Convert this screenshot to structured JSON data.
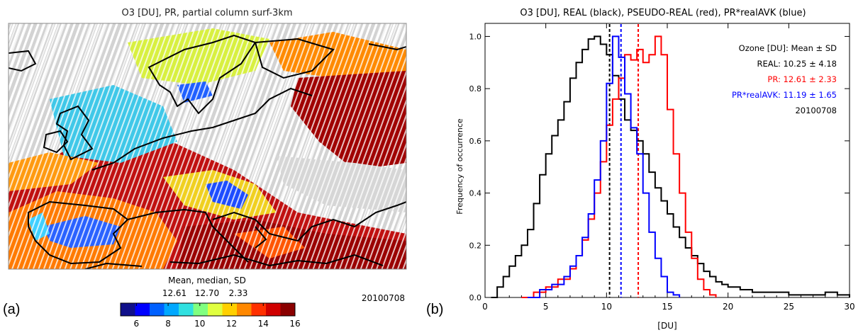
{
  "panel_a": {
    "label": "(a)",
    "title": "O3 [DU], PR, partial column surf-3km",
    "date": "20100708",
    "stats_label": "Mean, median, SD",
    "stats_values": [
      "12.61",
      "12.70",
      "2.33"
    ],
    "colorbar": {
      "min": 5,
      "max": 16,
      "ticks": [
        "6",
        "8",
        "10",
        "12",
        "14",
        "16"
      ],
      "colors": [
        "#10108a",
        "#0000ff",
        "#0060ff",
        "#00a8ff",
        "#30e0e0",
        "#80ff80",
        "#e0ff40",
        "#ffd000",
        "#ff8800",
        "#ff3000",
        "#d00000",
        "#8a0000"
      ]
    },
    "map_colors": {
      "background": "#d9d9d9",
      "coast": "#000000"
    }
  },
  "chart_data": {
    "type": "line",
    "panel_label": "(b)",
    "title": "O3 [DU], REAL (black), PSEUDO-REAL (red), PR*realAVK (blue)",
    "xlabel": "[DU]",
    "ylabel": "Frequency of occurrence",
    "xlim": [
      0,
      30
    ],
    "ylim": [
      0,
      1.05
    ],
    "xticks": [
      "0",
      "5",
      "10",
      "15",
      "20",
      "25",
      "30"
    ],
    "yticks": [
      "0.0",
      "0.2",
      "0.4",
      "0.6",
      "0.8",
      "1.0"
    ],
    "legend": {
      "header": "Ozone [DU]: Mean ± SD",
      "position": "top-right",
      "entries": [
        {
          "text": "REAL: 10.25 ± 4.18",
          "color": "#000000"
        },
        {
          "text": "PR: 12.61 ± 2.33",
          "color": "#ff0000"
        },
        {
          "text": "PR*realAVK: 11.19 ± 1.65",
          "color": "#0000ff"
        }
      ],
      "date": "20100708"
    },
    "series": [
      {
        "color": "#000000",
        "x": [
          0.5,
          1,
          1.5,
          2,
          2.5,
          3,
          3.5,
          4,
          4.5,
          5,
          5.5,
          6,
          6.5,
          7,
          7.5,
          8,
          8.5,
          9,
          9.5,
          10,
          10.5,
          11,
          11.5,
          12,
          12.5,
          13,
          13.5,
          14,
          14.5,
          15,
          15.5,
          16,
          16.5,
          17,
          17.5,
          18,
          18.5,
          19,
          19.5,
          20,
          21,
          22,
          23,
          24,
          25,
          26,
          27,
          28,
          29,
          30
        ],
        "y": [
          0.0,
          0.04,
          0.08,
          0.12,
          0.16,
          0.2,
          0.26,
          0.36,
          0.47,
          0.55,
          0.62,
          0.68,
          0.75,
          0.84,
          0.9,
          0.95,
          0.99,
          1.0,
          0.97,
          0.93,
          0.85,
          0.76,
          0.68,
          0.64,
          0.6,
          0.55,
          0.48,
          0.42,
          0.37,
          0.32,
          0.27,
          0.23,
          0.19,
          0.16,
          0.13,
          0.1,
          0.08,
          0.06,
          0.05,
          0.04,
          0.03,
          0.02,
          0.02,
          0.02,
          0.01,
          0.01,
          0.01,
          0.02,
          0.01,
          0.0
        ]
      },
      {
        "color": "#ff0000",
        "x": [
          3,
          4,
          5,
          6,
          7,
          7.5,
          8,
          8.5,
          9,
          9.5,
          10,
          10.5,
          11,
          11.5,
          12,
          12.5,
          13,
          13.5,
          14,
          14.5,
          15,
          15.5,
          16,
          16.5,
          17,
          17.5,
          18,
          18.5,
          19
        ],
        "y": [
          0.0,
          0.02,
          0.04,
          0.07,
          0.11,
          0.16,
          0.22,
          0.3,
          0.4,
          0.52,
          0.66,
          0.76,
          0.84,
          0.93,
          0.91,
          0.95,
          0.9,
          0.93,
          1.0,
          0.93,
          0.72,
          0.55,
          0.4,
          0.25,
          0.15,
          0.07,
          0.03,
          0.01,
          0.0
        ]
      },
      {
        "color": "#0000ff",
        "x": [
          3.5,
          4.5,
          5.5,
          6.5,
          7,
          7.5,
          8,
          8.5,
          9,
          9.5,
          10,
          10.5,
          11,
          11.5,
          12,
          12.5,
          13,
          13.5,
          14,
          14.5,
          15,
          15.5,
          16
        ],
        "y": [
          0.0,
          0.03,
          0.05,
          0.08,
          0.12,
          0.16,
          0.23,
          0.32,
          0.45,
          0.6,
          0.82,
          1.0,
          0.92,
          0.78,
          0.65,
          0.55,
          0.4,
          0.25,
          0.15,
          0.08,
          0.02,
          0.01,
          0.0
        ]
      }
    ],
    "vlines": [
      {
        "x": 10.25,
        "color": "#000000"
      },
      {
        "x": 11.19,
        "color": "#0000ff"
      },
      {
        "x": 12.61,
        "color": "#ff0000"
      }
    ]
  }
}
